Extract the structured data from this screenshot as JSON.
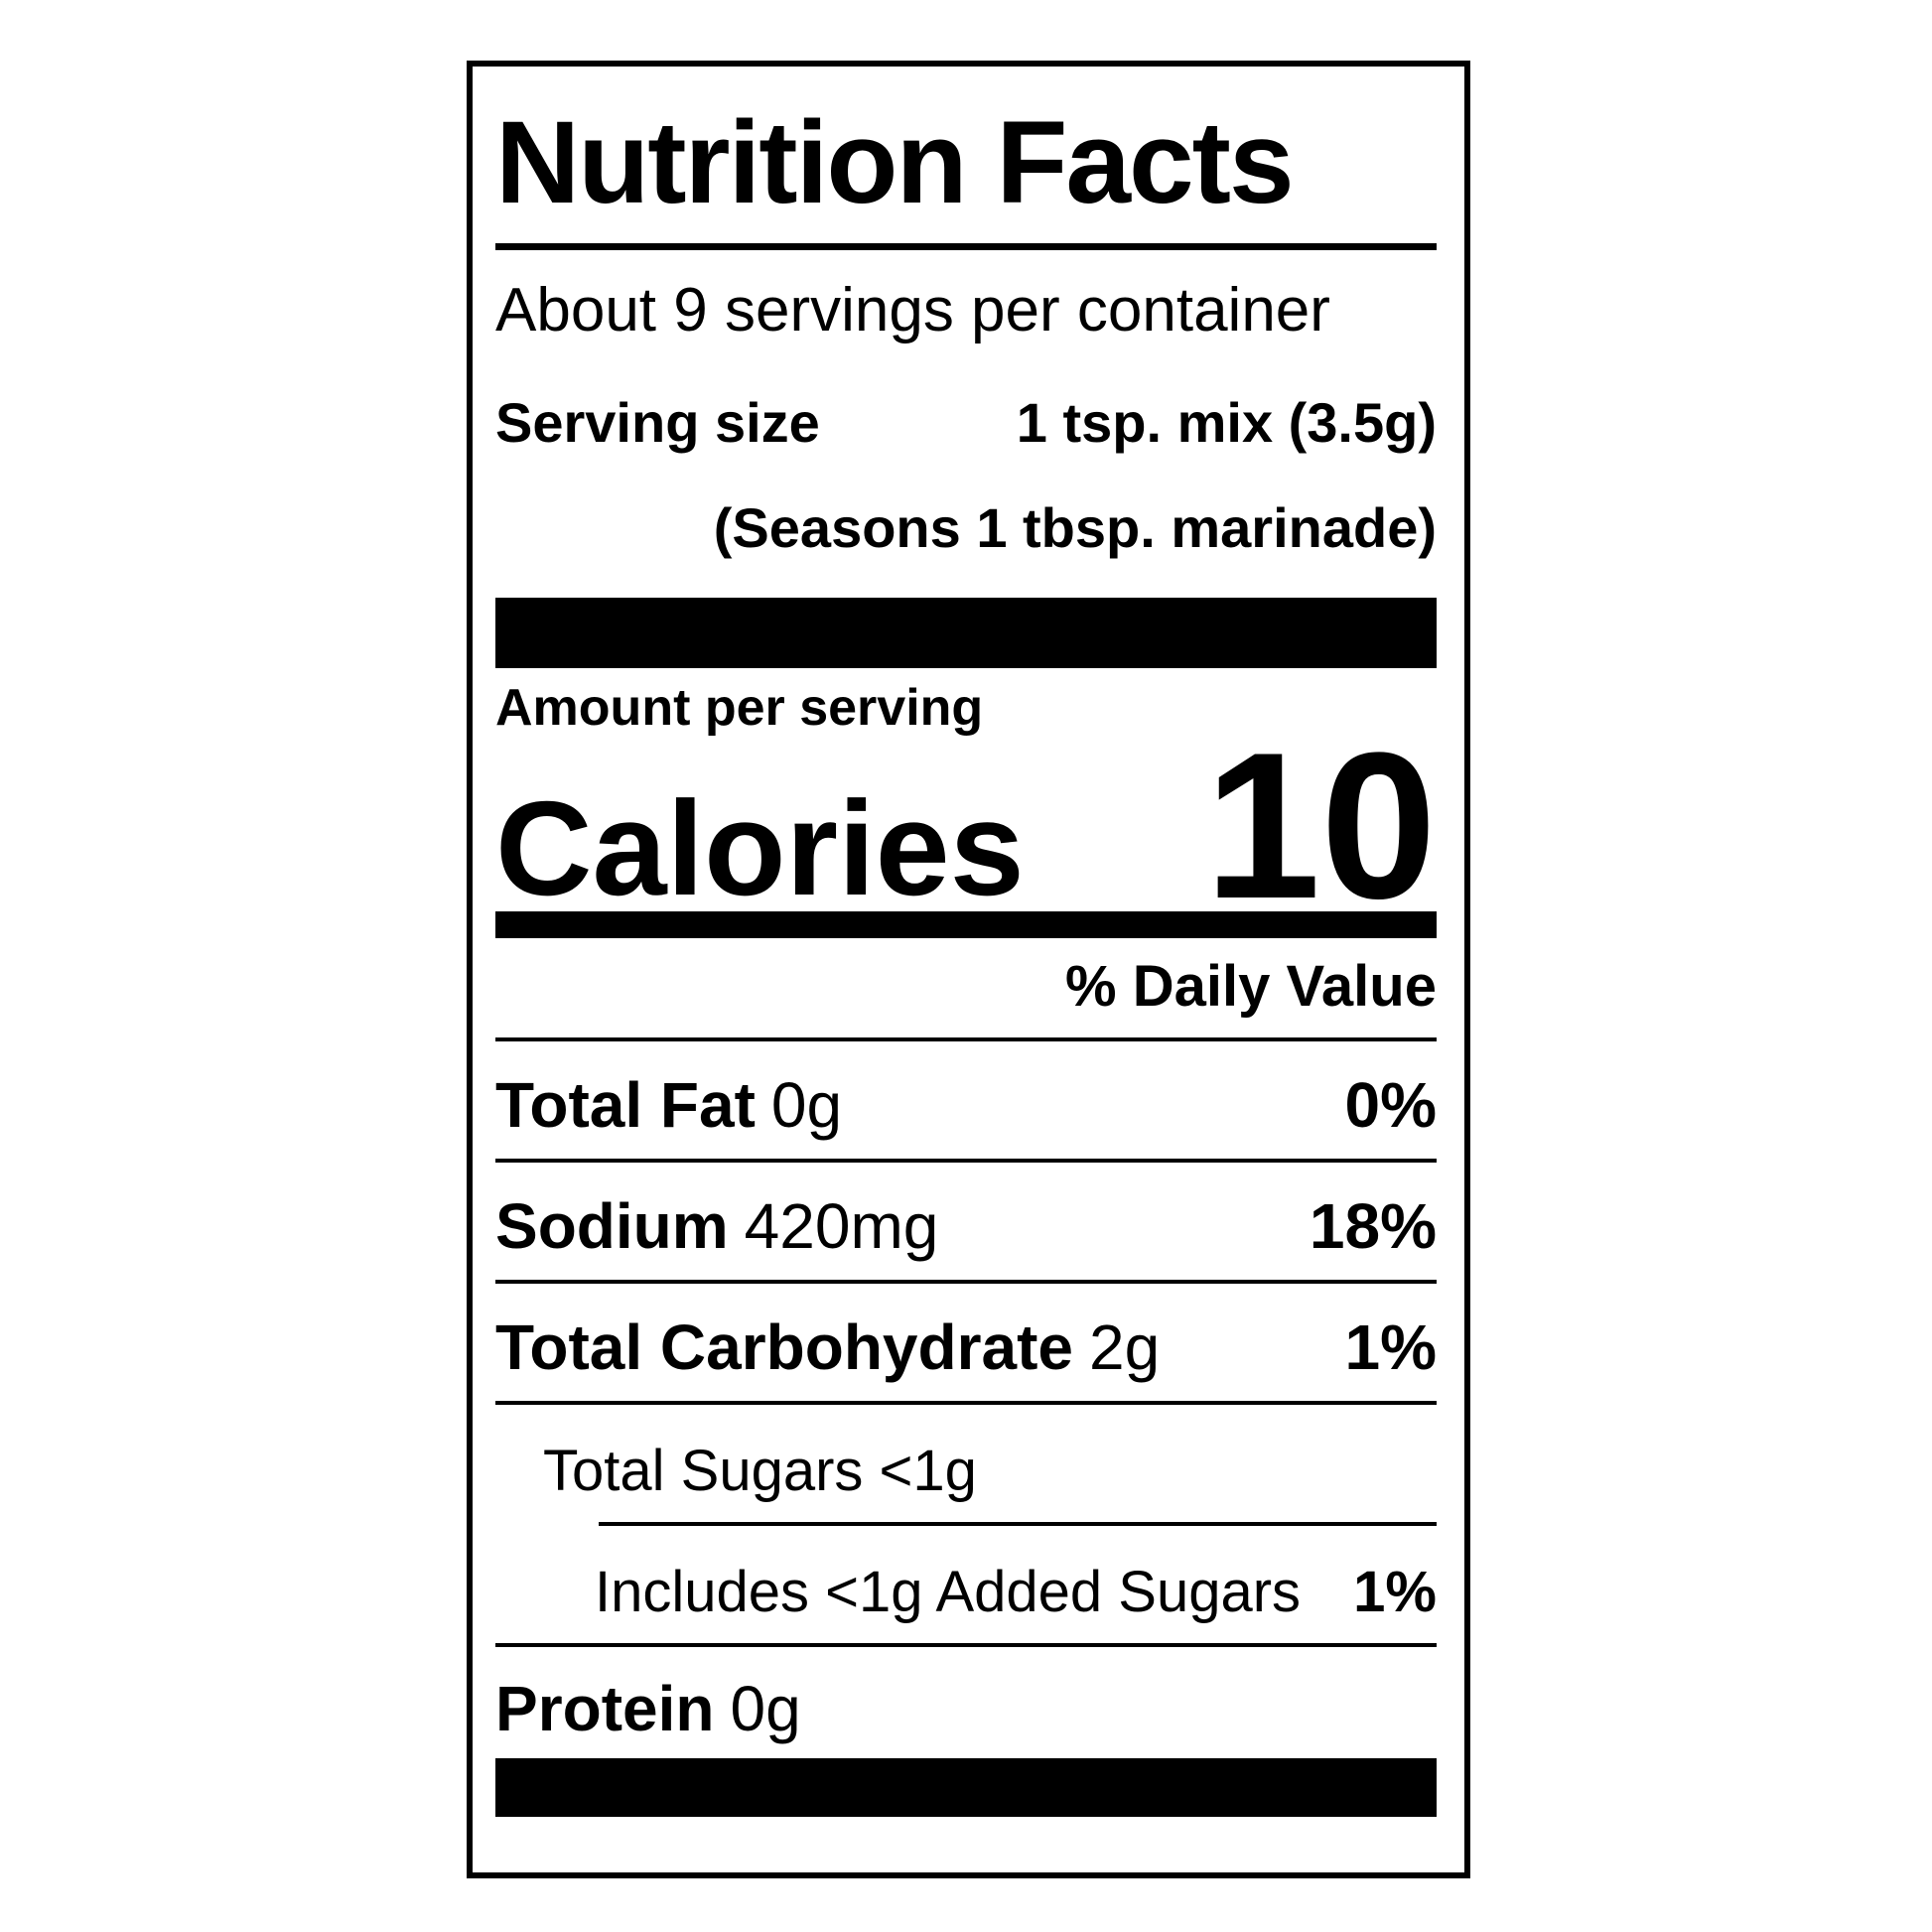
{
  "label": {
    "title": "Nutrition Facts",
    "servings_per_container": "About 9 servings per container",
    "serving_size_label": "Serving size",
    "serving_size_value": "1 tsp. mix (3.5g)",
    "serving_note": "(Seasons 1 tbsp. marinade)",
    "amount_per_serving": "Amount per serving",
    "calories_label": "Calories",
    "calories_value": "10",
    "daily_value_header": "% Daily Value",
    "nutrients": [
      {
        "name": "Total Fat",
        "amount": "0g",
        "dv": "0%"
      },
      {
        "name": "Sodium",
        "amount": "420mg",
        "dv": "18%"
      },
      {
        "name": "Total Carbohydrate",
        "amount": "2g",
        "dv": "1%"
      },
      {
        "name": "Total Sugars <1g"
      },
      {
        "name": "Includes <1g Added Sugars",
        "dv": "1%"
      },
      {
        "name": "Protein",
        "amount": "0g"
      }
    ]
  }
}
